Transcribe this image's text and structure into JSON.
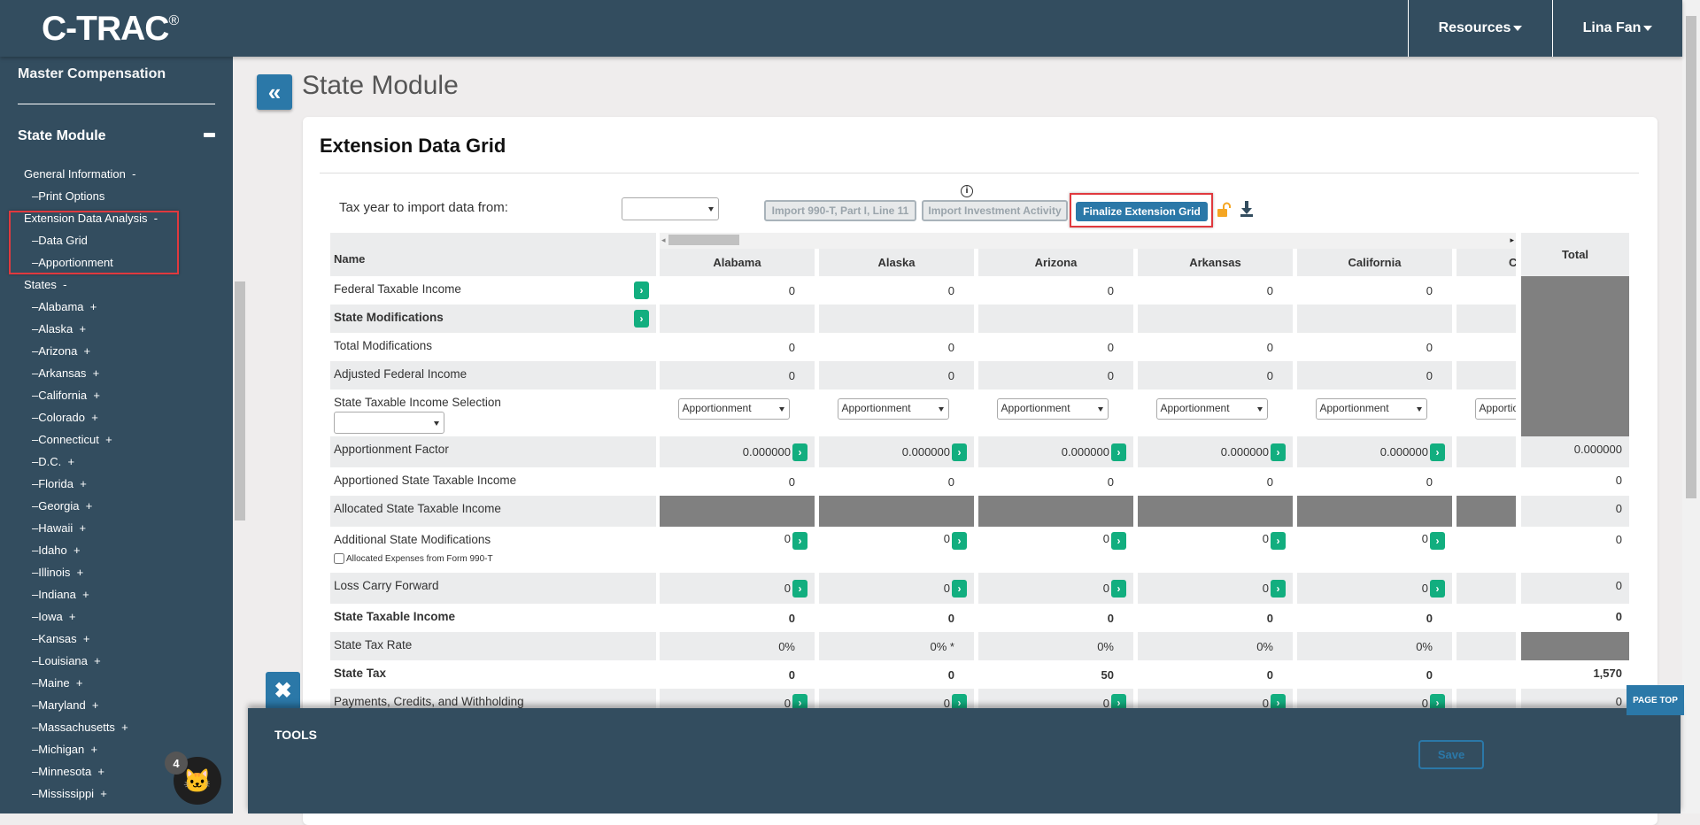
{
  "header": {
    "logo": "C-TRAC",
    "logo_mark": "®",
    "resources": "Resources",
    "user": "Lina Fan"
  },
  "sidebar": {
    "master_compensation": "Master Compensation",
    "state_module": "State Module",
    "items": [
      {
        "label": "General Information  -",
        "indent": 1
      },
      {
        "label": "–Print Options",
        "indent": 2
      },
      {
        "label": "Extension Data Analysis  -",
        "indent": 1
      },
      {
        "label": "–Data Grid",
        "indent": 2
      },
      {
        "label": "–Apportionment",
        "indent": 2
      },
      {
        "label": "States  -",
        "indent": 1
      },
      {
        "label": "–Alabama  +",
        "indent": 2
      },
      {
        "label": "–Alaska  +",
        "indent": 2
      },
      {
        "label": "–Arizona  +",
        "indent": 2
      },
      {
        "label": "–Arkansas  +",
        "indent": 2
      },
      {
        "label": "–California  +",
        "indent": 2
      },
      {
        "label": "–Colorado  +",
        "indent": 2
      },
      {
        "label": "–Connecticut  +",
        "indent": 2
      },
      {
        "label": "–D.C.  +",
        "indent": 2
      },
      {
        "label": "–Florida  +",
        "indent": 2
      },
      {
        "label": "–Georgia  +",
        "indent": 2
      },
      {
        "label": "–Hawaii  +",
        "indent": 2
      },
      {
        "label": "–Idaho  +",
        "indent": 2
      },
      {
        "label": "–Illinois  +",
        "indent": 2
      },
      {
        "label": "–Indiana  +",
        "indent": 2
      },
      {
        "label": "–Iowa  +",
        "indent": 2
      },
      {
        "label": "–Kansas  +",
        "indent": 2
      },
      {
        "label": "–Louisiana  +",
        "indent": 2
      },
      {
        "label": "–Maine  +",
        "indent": 2
      },
      {
        "label": "–Maryland  +",
        "indent": 2
      },
      {
        "label": "–Massachusetts  +",
        "indent": 2
      },
      {
        "label": "–Michigan  +",
        "indent": 2
      },
      {
        "label": "–Minnesota  +",
        "indent": 2
      },
      {
        "label": "–Mississippi  +",
        "indent": 2
      }
    ]
  },
  "page": {
    "title": "State Module"
  },
  "card": {
    "title": "Extension Data Grid",
    "tax_year_label": "Tax year to import data from:",
    "tax_year_value": "",
    "import_990t": "Import 990-T, Part I, Line 11",
    "import_investment": "Import Investment Activity",
    "info_icon": "i",
    "finalize": "Finalize Extension Grid"
  },
  "grid": {
    "name_header": "Name",
    "total_header": "Total",
    "states": [
      "Alabama",
      "Alaska",
      "Arizona",
      "Arkansas",
      "California",
      "Colorado"
    ],
    "rows": [
      {
        "label": "Federal Taxable Income",
        "name_arrow": true,
        "values": [
          "0",
          "0",
          "0",
          "0",
          "0",
          ""
        ],
        "total_dark": true
      },
      {
        "label": "State Modifications",
        "bold": true,
        "name_arrow": true,
        "values": [
          "",
          "",
          "",
          "",
          "",
          ""
        ],
        "total_dark": true
      },
      {
        "label": "Total Modifications",
        "values": [
          "0",
          "0",
          "0",
          "0",
          "0",
          ""
        ],
        "total_dark": true
      },
      {
        "label": "Adjusted Federal Income",
        "values": [
          "0",
          "0",
          "0",
          "0",
          "0",
          ""
        ],
        "total_dark": true
      },
      {
        "label": "State Taxable Income Selection",
        "name_select": "",
        "select_values": [
          "Apportionment",
          "Apportionment",
          "Apportionment",
          "Apportionment",
          "Apportionment",
          "Apportionment"
        ],
        "total_dark": true
      },
      {
        "label": "Apportionment Factor",
        "cell_arrow": true,
        "values": [
          "0.000000",
          "0.000000",
          "0.000000",
          "0.000000",
          "0.000000",
          ""
        ],
        "total": "0.000000"
      },
      {
        "label": "Apportioned State Taxable Income",
        "values": [
          "0",
          "0",
          "0",
          "0",
          "0",
          ""
        ],
        "total": "0"
      },
      {
        "label": "Allocated State Taxable Income",
        "cells_dark": true,
        "values": [
          "",
          "",
          "",
          "",
          "",
          ""
        ],
        "total": "0"
      },
      {
        "label": "Additional State Modifications",
        "checkbox_label": "Allocated Expenses from Form 990-T",
        "checked": false,
        "cell_arrow": true,
        "values": [
          "0",
          "0",
          "0",
          "0",
          "0",
          ""
        ],
        "total": "0"
      },
      {
        "label": "Loss Carry Forward",
        "cell_arrow": true,
        "values": [
          "0",
          "0",
          "0",
          "0",
          "0",
          ""
        ],
        "total": "0"
      },
      {
        "label": "State Taxable Income",
        "bold": true,
        "values": [
          "0",
          "0",
          "0",
          "0",
          "0",
          ""
        ],
        "total": "0"
      },
      {
        "label": "State Tax Rate",
        "values": [
          "0%",
          "0% *",
          "0%",
          "0%",
          "0%",
          ""
        ],
        "total_dark": true
      },
      {
        "label": "State Tax",
        "bold": true,
        "values": [
          "0",
          "0",
          "50",
          "0",
          "0",
          ""
        ],
        "total": "1,570"
      },
      {
        "label": "Payments, Credits, and Withholding",
        "cell_arrow": true,
        "values": [
          "0",
          "0",
          "0",
          "0",
          "0",
          ""
        ],
        "total": "0"
      }
    ]
  },
  "tools": {
    "title": "TOOLS",
    "save": "Save"
  },
  "page_top": "PAGE TOP",
  "chat": {
    "badge": "4"
  },
  "colors": {
    "header": "#334d5f",
    "accent": "#2b78a8",
    "go_green": "#12ae7f",
    "highlight": "#e0393e"
  }
}
